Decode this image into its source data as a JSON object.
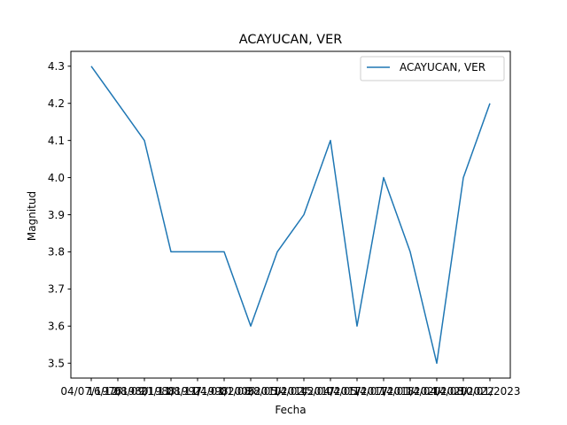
{
  "chart_data": {
    "type": "line",
    "title": "ACAYUCAN, VER",
    "xlabel": "Fecha",
    "ylabel": "Magnitud",
    "ylim": [
      3.46,
      4.34
    ],
    "yticks": [
      3.5,
      3.6,
      3.7,
      3.8,
      3.9,
      4.0,
      4.1,
      4.2,
      4.3
    ],
    "ytick_labels": [
      "3.5",
      "3.6",
      "3.7",
      "3.8",
      "3.9",
      "4.0",
      "4.1",
      "4.2",
      "4.3"
    ],
    "categories": [
      "04/07/1976",
      "16/12/1980",
      "08/09/1988",
      "21/11/1997",
      "08/11/1998",
      "24/01/2006",
      "01/08/2010",
      "28/05/2014",
      "14/02/2017",
      "15/04/2017",
      "04/05/2017",
      "14/07/2018",
      "14/01/2020",
      "14/04/2020",
      "14/08/2022",
      "10/01/2023"
    ],
    "series": [
      {
        "name": "ACAYUCAN, VER",
        "color": "#1f77b4",
        "values": [
          4.3,
          4.2,
          4.1,
          3.8,
          3.8,
          3.8,
          3.6,
          3.8,
          3.9,
          4.1,
          3.6,
          4.0,
          3.8,
          3.5,
          4.0,
          4.2
        ]
      }
    ],
    "legend_position": "top-right",
    "grid": false
  }
}
